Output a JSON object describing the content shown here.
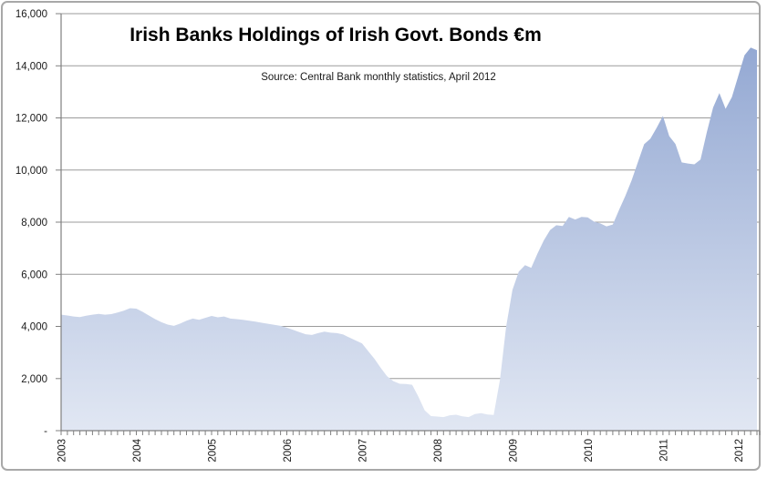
{
  "chart": {
    "title": "Irish Banks Holdings of Irish Govt. Bonds €m",
    "subtitle": "Source: Central Bank monthly statistics, April 2012",
    "colors": {
      "area_top": "#8da3d0",
      "area_bottom": "#e1e7f3",
      "gridline": "#9b9b9b",
      "axis": "#808080",
      "label_text": "#1a1a1a",
      "frame_border": "#a8a8a8",
      "background": "#ffffff"
    }
  },
  "chart_data": {
    "type": "area",
    "title": "Irish Banks Holdings of Irish Govt. Bonds €m",
    "subtitle": "Source: Central Bank monthly statistics, April 2012",
    "frequency": "monthly",
    "x_start": "2003-01",
    "x_end": "2012-04",
    "x_tick_labels": [
      "2003",
      "2004",
      "2005",
      "2006",
      "2007",
      "2008",
      "2009",
      "2010",
      "2011",
      "2012"
    ],
    "y_tick_labels": [
      "16,000",
      "14,000",
      "12,000",
      "10,000",
      "8,000",
      "6,000",
      "4,000",
      "2,000",
      "-"
    ],
    "ylim": [
      0,
      16000
    ],
    "y_step": 2000,
    "gridlines": "horizontal",
    "legend": "none",
    "x_label_rotation": -90,
    "series": [
      {
        "name": "Irish banks holdings of Irish government bonds (EUR m)",
        "values": [
          4450,
          4420,
          4380,
          4360,
          4410,
          4450,
          4480,
          4450,
          4470,
          4530,
          4600,
          4700,
          4680,
          4560,
          4420,
          4280,
          4160,
          4070,
          4020,
          4110,
          4220,
          4300,
          4250,
          4330,
          4400,
          4350,
          4380,
          4300,
          4280,
          4250,
          4220,
          4180,
          4140,
          4100,
          4060,
          4020,
          3950,
          3870,
          3780,
          3700,
          3670,
          3740,
          3800,
          3760,
          3740,
          3690,
          3570,
          3460,
          3350,
          3050,
          2750,
          2400,
          2090,
          1900,
          1800,
          1790,
          1760,
          1300,
          780,
          560,
          540,
          520,
          590,
          610,
          550,
          520,
          640,
          670,
          620,
          600,
          1950,
          4000,
          5400,
          6100,
          6350,
          6250,
          6800,
          7300,
          7700,
          7880,
          7850,
          8200,
          8100,
          8200,
          8180,
          8020,
          7950,
          7840,
          7910,
          8470,
          9000,
          9600,
          10300,
          10990,
          11200,
          11620,
          12075,
          11300,
          11000,
          10290,
          10250,
          10220,
          10400,
          11450,
          12400,
          12950,
          12350,
          12800,
          13600,
          14400,
          14700,
          14600
        ]
      }
    ]
  }
}
